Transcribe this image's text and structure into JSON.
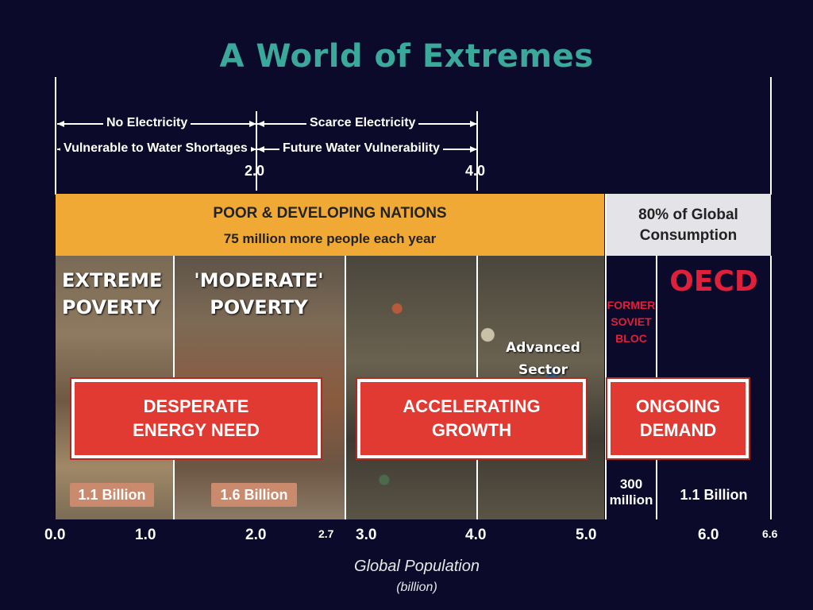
{
  "title": "A World of Extremes",
  "top_annotations": {
    "row1_left": "No Electricity",
    "row1_right": "Scarce Electricity",
    "row2_left": "Vulnerable to Water  Shortages",
    "row2_right": "Future Water Vulnerability",
    "marker_2": "2.0",
    "marker_4": "4.0"
  },
  "band": {
    "heading": "POOR & DEVELOPING NATIONS",
    "subheading": "75 million more people each year",
    "consumption_line1": "80% of Global",
    "consumption_line2": "Consumption"
  },
  "segments": {
    "extreme_line1": "EXTREME",
    "extreme_line2": "POVERTY",
    "moderate_line1": "'MODERATE'",
    "moderate_line2": "POVERTY",
    "advanced_line1": "Advanced",
    "advanced_line2": "Sector",
    "soviet_line1": "FORMER",
    "soviet_line2": "SOVIET",
    "soviet_line3": "BLOC",
    "oecd": "OECD"
  },
  "callouts": {
    "desperate_line1": "DESPERATE",
    "desperate_line2": "ENERGY NEED",
    "accelerating_line1": "ACCELERATING",
    "accelerating_line2": "GROWTH",
    "ongoing_line1": "ONGOING",
    "ongoing_line2": "DEMAND"
  },
  "counts": {
    "extreme": "1.1 Billion",
    "moderate": "1.6 Billion",
    "soviet_line1": "300",
    "soviet_line2": "million",
    "oecd": "1.1 Billion"
  },
  "axis": {
    "ticks": [
      "0.0",
      "1.0",
      "2.0",
      "2.7",
      "3.0",
      "4.0",
      "5.0",
      "6.0",
      "6.6"
    ],
    "label": "Global Population",
    "unit": "(billion)"
  },
  "colors": {
    "background": "#0b0a2a",
    "title": "#3aa99b",
    "band": "#f0a935",
    "callout": "#e03a33",
    "oecd": "#e0203a",
    "pill": "#c98a6e"
  }
}
